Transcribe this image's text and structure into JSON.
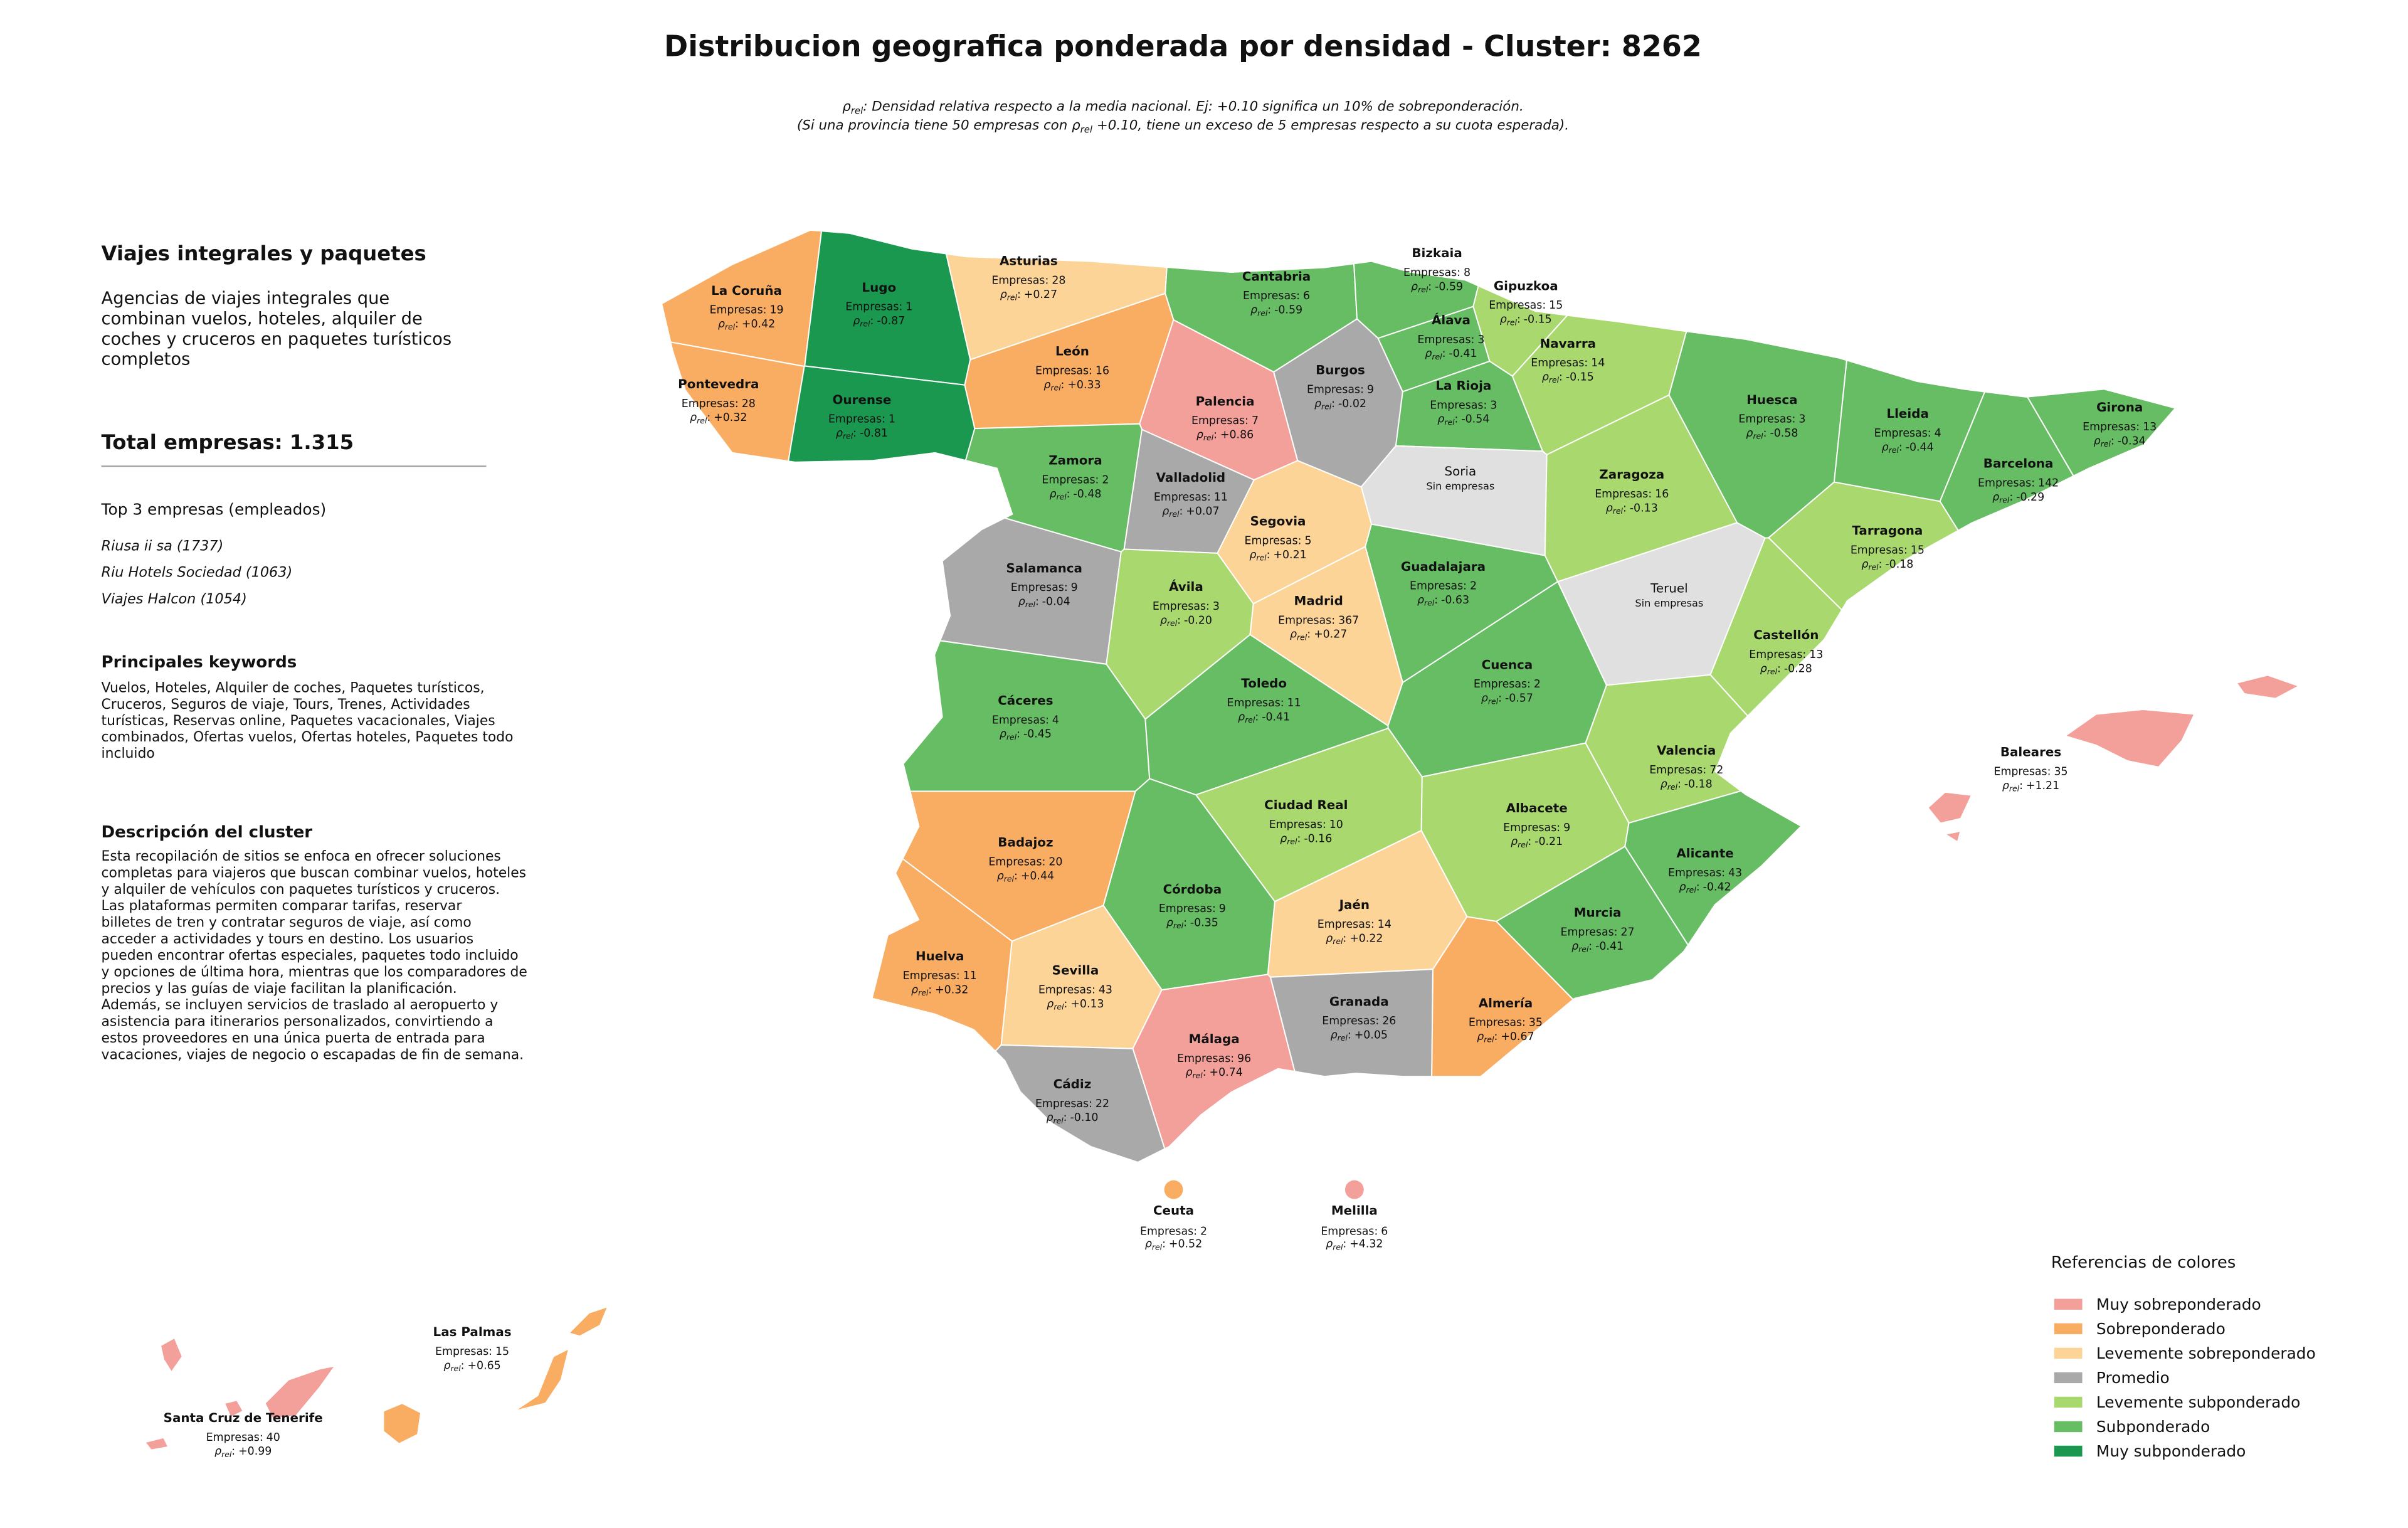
{
  "title": "Distribucion geografica ponderada por densidad - Cluster: 8262",
  "subtitle": [
    [
      "ρ",
      "rel",
      ": Densidad relativa respecto a la media nacional. Ej: +0.10 significa un 10% de sobreponderación."
    ],
    [
      "(Si una provincia tiene 50 empresas con ρ",
      "rel",
      " +0.10, tiene un exceso de 5 empresas respecto a su cuota esperada)."
    ]
  ],
  "panel": {
    "heading": "Viajes integrales y paquetes",
    "summary": [
      "Agencias de viajes integrales que",
      "combinan vuelos, hoteles, alquiler de",
      "coches y cruceros en paquetes turísticos",
      "completos"
    ],
    "total": "Total empresas: 1.315",
    "top_heading": "Top 3 empresas (empleados)",
    "top": [
      "Riusa ii sa (1737)",
      "Riu Hotels Sociedad (1063)",
      "Viajes Halcon (1054)"
    ],
    "keywords_heading": "Principales keywords",
    "keywords": [
      "Vuelos, Hoteles, Alquiler de coches, Paquetes turísticos,",
      "Cruceros, Seguros de viaje, Tours, Trenes, Actividades",
      "turísticas, Reservas online, Paquetes vacacionales, Viajes",
      "combinados, Ofertas vuelos, Ofertas hoteles, Paquetes todo",
      "incluido"
    ],
    "description_heading": "Descripción del cluster",
    "description": [
      "Esta recopilación de sitios se enfoca en ofrecer soluciones",
      "completas para viajeros que buscan combinar vuelos, hoteles",
      "y alquiler de vehículos con paquetes turísticos y cruceros.",
      "Las plataformas permiten comparar tarifas, reservar",
      "billetes de tren y contratar seguros de viaje, así como",
      "acceder a actividades y tours en destino. Los usuarios",
      "pueden encontrar ofertas especiales, paquetes todo incluido",
      "y opciones de última hora, mientras que los comparadores de",
      "precios y las guías de viaje facilitan la planificación.",
      "Además, se incluyen servicios de traslado al aeropuerto y",
      "asistencia para itinerarios personalizados, convirtiendo a",
      "estos proveedores en una única puerta de entrada para",
      "vacaciones, viajes de negocio o escapadas de fin de semana."
    ]
  },
  "labels": {
    "empresas": "Empresas:",
    "rho": "ρ",
    "rho_sub": "rel",
    "rho_suffix": ":",
    "no_data": "Sin empresas"
  },
  "no_data_color": "#e0e0e0",
  "legend": {
    "title": "Referencias de colores",
    "items": [
      {
        "label": "Muy sobreponderado",
        "color": "#f4a09a"
      },
      {
        "label": "Sobreponderado",
        "color": "#f9ad63"
      },
      {
        "label": "Levemente sobreponderado",
        "color": "#fdd497"
      },
      {
        "label": "Promedio",
        "color": "#a9a9a9"
      },
      {
        "label": "Levemente subponderado",
        "color": "#a8d86e"
      },
      {
        "label": "Subponderado",
        "color": "#66bd63"
      },
      {
        "label": "Muy subponderado",
        "color": "#1a9850"
      }
    ]
  },
  "provinces": [
    {
      "name": "La Coruña",
      "empresas": 19,
      "rho": {
        "value": 0.42,
        "label": "+0.42"
      },
      "level": 1
    },
    {
      "name": "Lugo",
      "empresas": 1,
      "rho": {
        "value": -0.87,
        "label": "-0.87"
      },
      "level": 6
    },
    {
      "name": "Asturias",
      "empresas": 28,
      "rho": {
        "value": 0.27,
        "label": "+0.27"
      },
      "level": 2
    },
    {
      "name": "Cantabria",
      "empresas": 6,
      "rho": {
        "value": -0.59,
        "label": "-0.59"
      },
      "level": 5
    },
    {
      "name": "Bizkaia",
      "empresas": 8,
      "rho": {
        "value": -0.59,
        "label": "-0.59"
      },
      "level": 5
    },
    {
      "name": "Gipuzkoa",
      "empresas": 15,
      "rho": {
        "value": -0.15,
        "label": "-0.15"
      },
      "level": 4
    },
    {
      "name": "Pontevedra",
      "empresas": 28,
      "rho": {
        "value": 0.32,
        "label": "+0.32"
      },
      "level": 1
    },
    {
      "name": "Ourense",
      "empresas": 1,
      "rho": {
        "value": -0.81,
        "label": "-0.81"
      },
      "level": 6
    },
    {
      "name": "León",
      "empresas": 16,
      "rho": {
        "value": 0.33,
        "label": "+0.33"
      },
      "level": 1
    },
    {
      "name": "Palencia",
      "empresas": 7,
      "rho": {
        "value": 0.86,
        "label": "+0.86"
      },
      "level": 0
    },
    {
      "name": "Burgos",
      "empresas": 9,
      "rho": {
        "value": -0.02,
        "label": "-0.02"
      },
      "level": 3
    },
    {
      "name": "Álava",
      "empresas": 3,
      "rho": {
        "value": -0.41,
        "label": "-0.41"
      },
      "level": 5
    },
    {
      "name": "La Rioja",
      "empresas": 3,
      "rho": {
        "value": -0.54,
        "label": "-0.54"
      },
      "level": 5
    },
    {
      "name": "Navarra",
      "empresas": 14,
      "rho": {
        "value": -0.15,
        "label": "-0.15"
      },
      "level": 4
    },
    {
      "name": "Huesca",
      "empresas": 3,
      "rho": {
        "value": -0.58,
        "label": "-0.58"
      },
      "level": 5
    },
    {
      "name": "Lleida",
      "empresas": 4,
      "rho": {
        "value": -0.44,
        "label": "-0.44"
      },
      "level": 5
    },
    {
      "name": "Girona",
      "empresas": 13,
      "rho": {
        "value": -0.34,
        "label": "-0.34"
      },
      "level": 5
    },
    {
      "name": "Barcelona",
      "empresas": 142,
      "rho": {
        "value": -0.29,
        "label": "-0.29"
      },
      "level": 5
    },
    {
      "name": "Zamora",
      "empresas": 2,
      "rho": {
        "value": -0.48,
        "label": "-0.48"
      },
      "level": 5
    },
    {
      "name": "Valladolid",
      "empresas": 11,
      "rho": {
        "value": 0.07,
        "label": "+0.07"
      },
      "level": 3
    },
    {
      "name": "Soria",
      "empresas": null,
      "rho": null,
      "level": null
    },
    {
      "name": "Zaragoza",
      "empresas": 16,
      "rho": {
        "value": -0.13,
        "label": "-0.13"
      },
      "level": 4
    },
    {
      "name": "Tarragona",
      "empresas": 15,
      "rho": {
        "value": -0.18,
        "label": "-0.18"
      },
      "level": 4
    },
    {
      "name": "Segovia",
      "empresas": 5,
      "rho": {
        "value": 0.21,
        "label": "+0.21"
      },
      "level": 2
    },
    {
      "name": "Salamanca",
      "empresas": 9,
      "rho": {
        "value": -0.04,
        "label": "-0.04"
      },
      "level": 3
    },
    {
      "name": "Guadalajara",
      "empresas": 2,
      "rho": {
        "value": -0.63,
        "label": "-0.63"
      },
      "level": 5
    },
    {
      "name": "Teruel",
      "empresas": null,
      "rho": null,
      "level": null
    },
    {
      "name": "Ávila",
      "empresas": 3,
      "rho": {
        "value": -0.2,
        "label": "-0.20"
      },
      "level": 4
    },
    {
      "name": "Madrid",
      "empresas": 367,
      "rho": {
        "value": 0.27,
        "label": "+0.27"
      },
      "level": 2
    },
    {
      "name": "Castellón",
      "empresas": 13,
      "rho": {
        "value": -0.28,
        "label": "-0.28"
      },
      "level": 4
    },
    {
      "name": "Cáceres",
      "empresas": 4,
      "rho": {
        "value": -0.45,
        "label": "-0.45"
      },
      "level": 5
    },
    {
      "name": "Toledo",
      "empresas": 11,
      "rho": {
        "value": -0.41,
        "label": "-0.41"
      },
      "level": 5
    },
    {
      "name": "Cuenca",
      "empresas": 2,
      "rho": {
        "value": -0.57,
        "label": "-0.57"
      },
      "level": 5
    },
    {
      "name": "Valencia",
      "empresas": 72,
      "rho": {
        "value": -0.18,
        "label": "-0.18"
      },
      "level": 4
    },
    {
      "name": "Baleares",
      "empresas": 35,
      "rho": {
        "value": 1.21,
        "label": "+1.21"
      },
      "level": 0
    },
    {
      "name": "Ciudad Real",
      "empresas": 10,
      "rho": {
        "value": -0.16,
        "label": "-0.16"
      },
      "level": 4
    },
    {
      "name": "Albacete",
      "empresas": 9,
      "rho": {
        "value": -0.21,
        "label": "-0.21"
      },
      "level": 4
    },
    {
      "name": "Badajoz",
      "empresas": 20,
      "rho": {
        "value": 0.44,
        "label": "+0.44"
      },
      "level": 1
    },
    {
      "name": "Alicante",
      "empresas": 43,
      "rho": {
        "value": -0.42,
        "label": "-0.42"
      },
      "level": 5
    },
    {
      "name": "Córdoba",
      "empresas": 9,
      "rho": {
        "value": -0.35,
        "label": "-0.35"
      },
      "level": 5
    },
    {
      "name": "Jaén",
      "empresas": 14,
      "rho": {
        "value": 0.22,
        "label": "+0.22"
      },
      "level": 2
    },
    {
      "name": "Murcia",
      "empresas": 27,
      "rho": {
        "value": -0.41,
        "label": "-0.41"
      },
      "level": 5
    },
    {
      "name": "Huelva",
      "empresas": 11,
      "rho": {
        "value": 0.32,
        "label": "+0.32"
      },
      "level": 1
    },
    {
      "name": "Sevilla",
      "empresas": 43,
      "rho": {
        "value": 0.13,
        "label": "+0.13"
      },
      "level": 2
    },
    {
      "name": "Granada",
      "empresas": 26,
      "rho": {
        "value": 0.05,
        "label": "+0.05"
      },
      "level": 3
    },
    {
      "name": "Almería",
      "empresas": 35,
      "rho": {
        "value": 0.67,
        "label": "+0.67"
      },
      "level": 1
    },
    {
      "name": "Málaga",
      "empresas": 96,
      "rho": {
        "value": 0.74,
        "label": "+0.74"
      },
      "level": 0
    },
    {
      "name": "Cádiz",
      "empresas": 22,
      "rho": {
        "value": -0.1,
        "label": "-0.10"
      },
      "level": 3
    },
    {
      "name": "Ceuta",
      "empresas": 2,
      "rho": {
        "value": 0.52,
        "label": "+0.52"
      },
      "level": 1
    },
    {
      "name": "Melilla",
      "empresas": 6,
      "rho": {
        "value": 4.32,
        "label": "+4.32"
      },
      "level": 0
    },
    {
      "name": "Las Palmas",
      "empresas": 15,
      "rho": {
        "value": 0.65,
        "label": "+0.65"
      },
      "level": 1
    },
    {
      "name": "Santa Cruz de Tenerife",
      "empresas": 40,
      "rho": {
        "value": 0.99,
        "label": "+0.99"
      },
      "level": 0
    }
  ]
}
